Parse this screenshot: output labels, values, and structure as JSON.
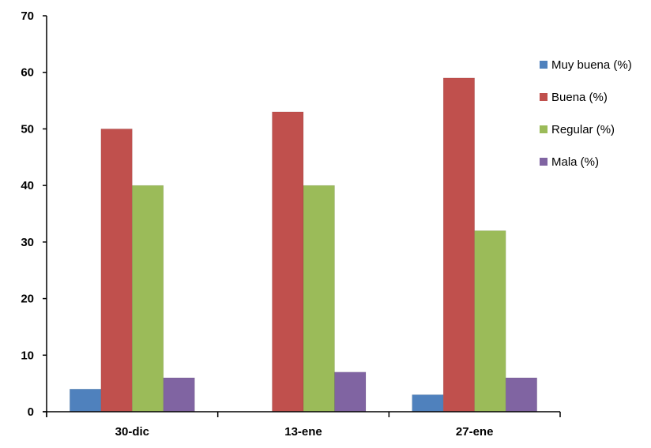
{
  "chart_data": {
    "type": "bar",
    "categories": [
      "30-dic",
      "13-ene",
      "27-ene"
    ],
    "series": [
      {
        "name": "Muy buena (%)",
        "values": [
          4,
          0,
          3
        ],
        "color": "#4F81BD"
      },
      {
        "name": "Buena (%)",
        "values": [
          50,
          53,
          59
        ],
        "color": "#C0504D"
      },
      {
        "name": "Regular (%)",
        "values": [
          40,
          40,
          32
        ],
        "color": "#9BBB59"
      },
      {
        "name": "Mala (%)",
        "values": [
          6,
          7,
          6
        ],
        "color": "#8064A2"
      }
    ],
    "yticks": [
      0,
      10,
      20,
      30,
      40,
      50,
      60,
      70
    ],
    "ylim": [
      0,
      70
    ],
    "grid": false,
    "legend": "right"
  }
}
